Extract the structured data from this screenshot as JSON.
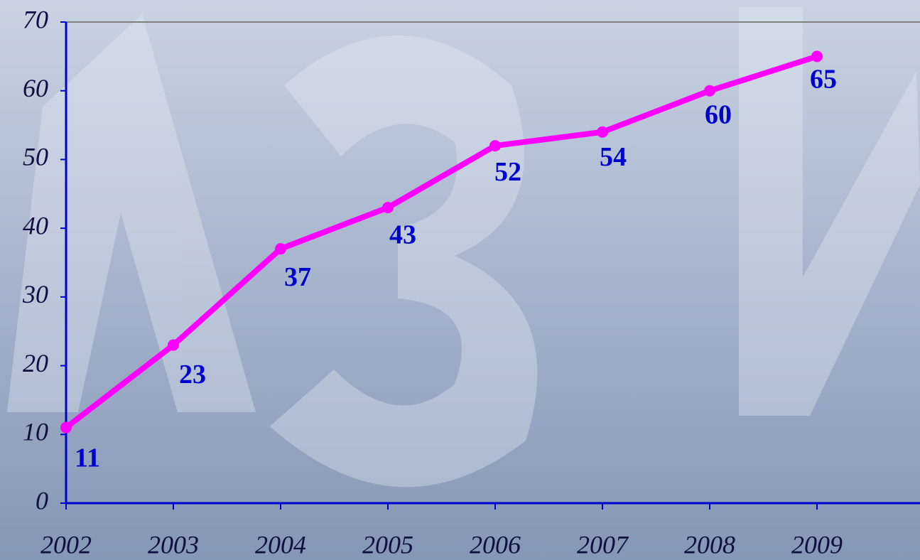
{
  "chart_data": {
    "type": "line",
    "categories": [
      "2002",
      "2003",
      "2004",
      "2005",
      "2006",
      "2007",
      "2008",
      "2009"
    ],
    "values": [
      11,
      23,
      37,
      43,
      52,
      54,
      60,
      65
    ],
    "color": "#ff00ff",
    "label_color": "#0000cc",
    "ylim": [
      0,
      70
    ],
    "yticks": [
      0,
      10,
      20,
      30,
      40,
      50,
      60,
      70
    ],
    "grid": false
  }
}
